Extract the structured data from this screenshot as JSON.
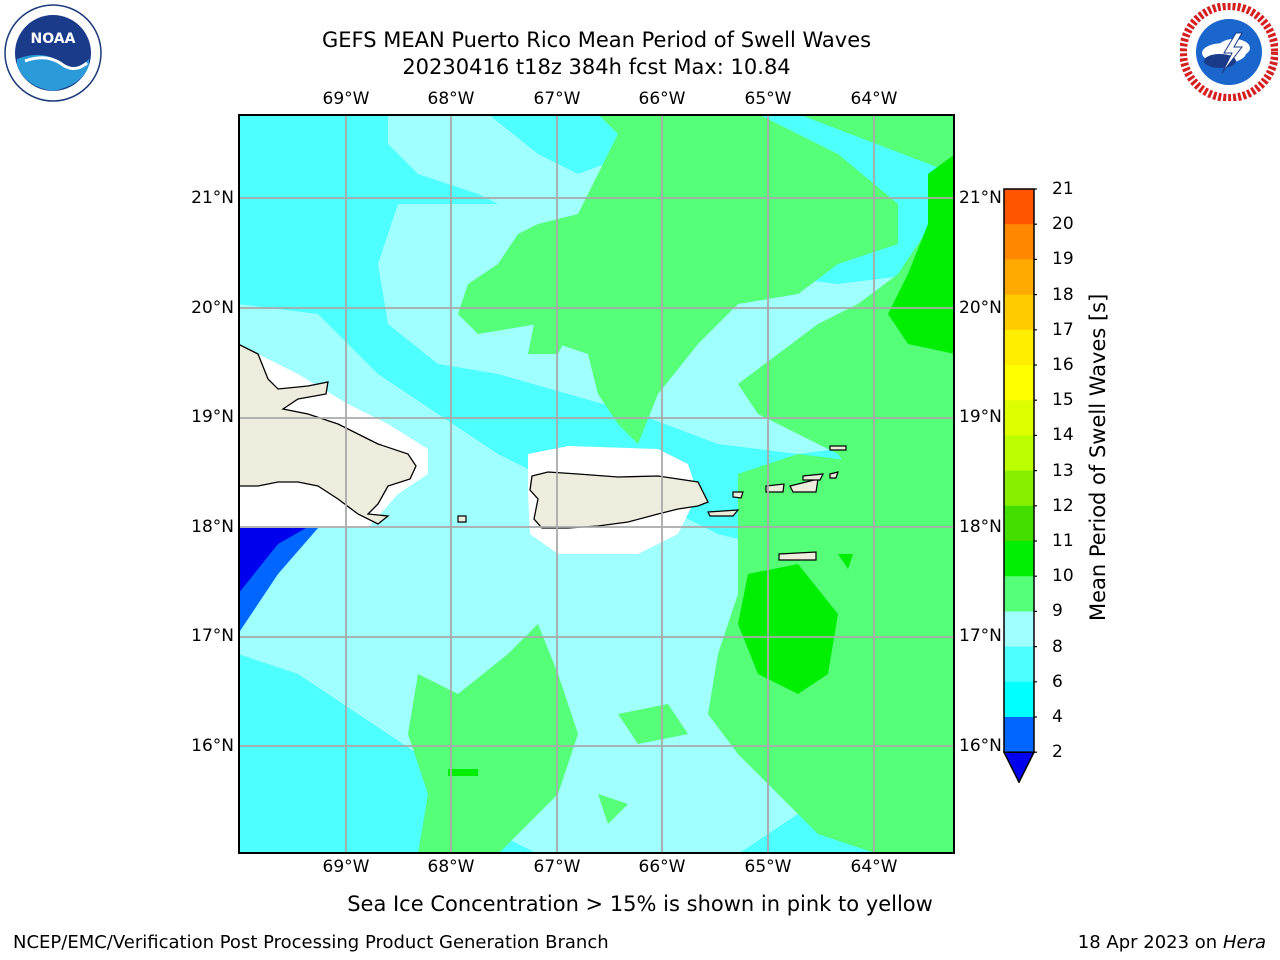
{
  "title_line1": "GEFS MEAN Puerto Rico Mean Period of Swell Waves",
  "title_line2": "20230416 t18z 384h fcst   Max: 10.84",
  "logos": {
    "left": {
      "name": "noaa-logo",
      "text": "NOAA",
      "ring_text": "NATIONAL OCEANIC AND ATMOSPHERIC ADMINISTRATION · U.S. DEPARTMENT OF COMMERCE"
    },
    "right": {
      "name": "nws-logo",
      "ring_text": "NATIONAL WEATHER SERVICE"
    }
  },
  "map": {
    "lon_ticks": [
      "69°W",
      "68°W",
      "67°W",
      "66°W",
      "65°W",
      "64°W"
    ],
    "lat_ticks": [
      "21°N",
      "20°N",
      "19°N",
      "18°N",
      "17°N",
      "16°N"
    ],
    "background_color": "#4dffff",
    "land_color": "#eeecdc"
  },
  "colorbar": {
    "label": "Mean Period of Swell Waves [s]",
    "ticks": [
      "2",
      "4",
      "6",
      "8",
      "9",
      "10",
      "11",
      "12",
      "13",
      "14",
      "15",
      "16",
      "17",
      "18",
      "19",
      "20",
      "21"
    ],
    "colors": [
      "#0066ff",
      "#00ffff",
      "#4dffff",
      "#a0ffff",
      "#55ff77",
      "#00ee00",
      "#44dd00",
      "#88ee00",
      "#bbff00",
      "#ddff00",
      "#ffff00",
      "#ffee00",
      "#ffcc00",
      "#ffaa00",
      "#ff8800",
      "#ff5500",
      "#ff2200",
      "#ff0000"
    ],
    "extend_color": "#0000ee"
  },
  "note": "Sea Ice Concentration > 15% is shown in pink to yellow",
  "footer_left": "NCEP/EMC/Verification Post Processing Product Generation Branch",
  "footer_date": "18 Apr 2023 on ",
  "footer_machine": "Hera"
}
